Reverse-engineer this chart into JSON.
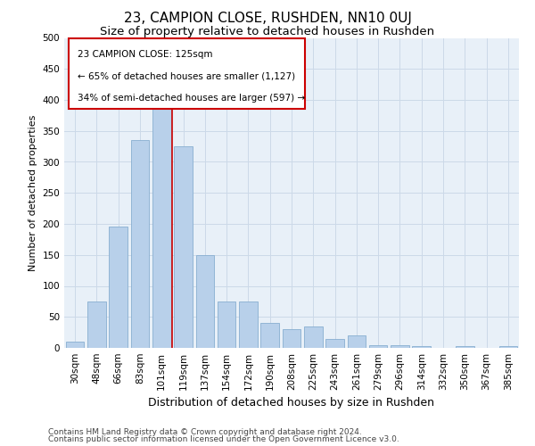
{
  "title1": "23, CAMPION CLOSE, RUSHDEN, NN10 0UJ",
  "title2": "Size of property relative to detached houses in Rushden",
  "xlabel": "Distribution of detached houses by size in Rushden",
  "ylabel": "Number of detached properties",
  "categories": [
    "30sqm",
    "48sqm",
    "66sqm",
    "83sqm",
    "101sqm",
    "119sqm",
    "137sqm",
    "154sqm",
    "172sqm",
    "190sqm",
    "208sqm",
    "225sqm",
    "243sqm",
    "261sqm",
    "279sqm",
    "296sqm",
    "314sqm",
    "332sqm",
    "350sqm",
    "367sqm",
    "385sqm"
  ],
  "values": [
    10,
    75,
    195,
    335,
    390,
    325,
    150,
    75,
    75,
    40,
    30,
    35,
    15,
    20,
    5,
    5,
    3,
    0,
    3,
    0,
    3
  ],
  "bar_color": "#b8d0ea",
  "bar_edgecolor": "#88aed0",
  "annotation_text1": "23 CAMPION CLOSE: 125sqm",
  "annotation_text2": "← 65% of detached houses are smaller (1,127)",
  "annotation_text3": "34% of semi-detached houses are larger (597) →",
  "annotation_box_color": "#ffffff",
  "annotation_border_color": "#cc0000",
  "vline_color": "#cc0000",
  "grid_color": "#ccd9e8",
  "bg_color": "#e8f0f8",
  "footer1": "Contains HM Land Registry data © Crown copyright and database right 2024.",
  "footer2": "Contains public sector information licensed under the Open Government Licence v3.0.",
  "ylim": [
    0,
    500
  ],
  "title1_fontsize": 11,
  "title2_fontsize": 9.5,
  "xlabel_fontsize": 9,
  "ylabel_fontsize": 8,
  "tick_fontsize": 7.5,
  "annotation_fontsize": 7.5,
  "footer_fontsize": 6.5,
  "vline_pos": 5.0
}
